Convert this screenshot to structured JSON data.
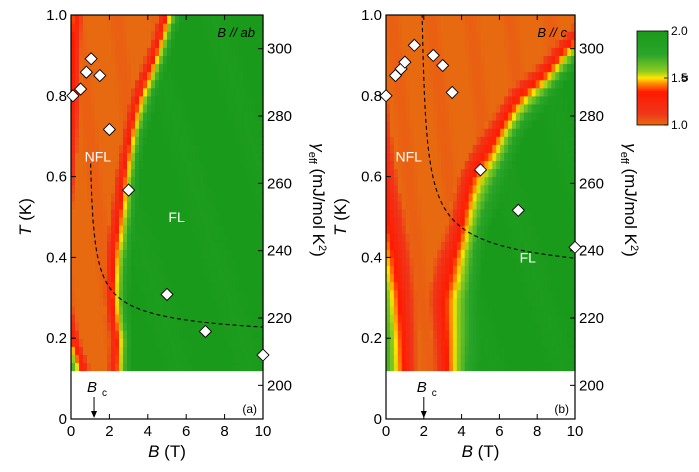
{
  "colors": {
    "low_alpha": "#ff1a00",
    "mid_alpha": "#ffe600",
    "high_alpha": "#1a9a1a",
    "marker_fill": "#ffffff",
    "marker_stroke": "#000000",
    "background": "#ffffff"
  },
  "colorbar": {
    "label": "α",
    "ticks": [
      {
        "value": 1.0,
        "label": "1.0"
      },
      {
        "value": 1.5,
        "label": "1.5"
      },
      {
        "value": 2.0,
        "label": "2.0"
      }
    ],
    "range": [
      1.0,
      2.0
    ]
  },
  "chart_data": [
    {
      "type": "heatmap",
      "panel_label": "(a)",
      "field_label": "B // ab",
      "xlabel": "B (T)",
      "ylabel": "T (K)",
      "y2label": "γ_eff (mJ/mol K²)",
      "xlim": [
        0,
        10
      ],
      "ylim": [
        0,
        1.0
      ],
      "y2lim": [
        190,
        310
      ],
      "heatmap_ymin": 0.12,
      "xticks": [
        {
          "value": 0,
          "label": "0"
        },
        {
          "value": 2,
          "label": "2"
        },
        {
          "value": 4,
          "label": "4"
        },
        {
          "value": 6,
          "label": "6"
        },
        {
          "value": 8,
          "label": "8"
        },
        {
          "value": 10,
          "label": "10"
        }
      ],
      "yticks": [
        {
          "value": 0,
          "label": "0"
        },
        {
          "value": 0.2,
          "label": "0.2"
        },
        {
          "value": 0.4,
          "label": "0.4"
        },
        {
          "value": 0.6,
          "label": "0.6"
        },
        {
          "value": 0.8,
          "label": "0.8"
        },
        {
          "value": 1.0,
          "label": "1.0"
        }
      ],
      "y2ticks": [
        {
          "value": 200,
          "label": "200"
        },
        {
          "value": 220,
          "label": "220"
        },
        {
          "value": 240,
          "label": "240"
        },
        {
          "value": 260,
          "label": "260"
        },
        {
          "value": 280,
          "label": "280"
        },
        {
          "value": 300,
          "label": "300"
        }
      ],
      "region_labels": [
        {
          "text": "NFL",
          "x": 1.4,
          "T": 0.65
        },
        {
          "text": "FL",
          "x": 5.5,
          "T": 0.5
        }
      ],
      "bc": {
        "label": "B",
        "sub": "c",
        "value": 1.2
      },
      "gamma_points": {
        "x": [
          0.1,
          0.5,
          0.8,
          1.05,
          1.5,
          2.0,
          3.0,
          5.0,
          7.0,
          10.0
        ],
        "gamma": [
          286,
          288,
          293,
          297,
          292,
          276,
          258,
          227,
          216,
          209
        ]
      },
      "fit_curve": {
        "Bc": 0.9,
        "a": 211,
        "b": 19,
        "p": 0.5,
        "x_start": 1.02,
        "x_end": 10.0
      },
      "map": {
        "nfl_left_edge": [
          [
            0.12,
            1.05
          ],
          [
            0.2,
            0.5
          ],
          [
            0.3,
            0.05
          ],
          [
            0.4,
            0.0
          ],
          [
            0.5,
            0.1
          ],
          [
            0.6,
            0.25
          ],
          [
            0.7,
            0.35
          ],
          [
            0.8,
            0.5
          ],
          [
            0.9,
            0.6
          ],
          [
            1.0,
            0.7
          ]
        ],
        "nfl_right_edge": [
          [
            0.12,
            1.8
          ],
          [
            0.2,
            1.9
          ],
          [
            0.3,
            1.7
          ],
          [
            0.4,
            1.8
          ],
          [
            0.5,
            2.0
          ],
          [
            0.6,
            2.2
          ],
          [
            0.7,
            2.6
          ],
          [
            0.8,
            3.1
          ],
          [
            0.9,
            3.8
          ],
          [
            1.0,
            4.5
          ]
        ],
        "crossover_width": 1.4
      }
    },
    {
      "type": "heatmap",
      "panel_label": "(b)",
      "field_label": "B // c",
      "xlabel": "B (T)",
      "ylabel": "T (K)",
      "y2label": "γ_eff (mJ/mol K²)",
      "xlim": [
        0,
        10
      ],
      "ylim": [
        0,
        1.0
      ],
      "y2lim": [
        190,
        310
      ],
      "heatmap_ymin": 0.12,
      "xticks": [
        {
          "value": 0,
          "label": "0"
        },
        {
          "value": 2,
          "label": "2"
        },
        {
          "value": 4,
          "label": "4"
        },
        {
          "value": 6,
          "label": "6"
        },
        {
          "value": 8,
          "label": "8"
        },
        {
          "value": 10,
          "label": "10"
        }
      ],
      "yticks": [
        {
          "value": 0,
          "label": "0"
        },
        {
          "value": 0.2,
          "label": "0.2"
        },
        {
          "value": 0.4,
          "label": "0.4"
        },
        {
          "value": 0.6,
          "label": "0.6"
        },
        {
          "value": 0.8,
          "label": "0.8"
        },
        {
          "value": 1.0,
          "label": "1.0"
        }
      ],
      "y2ticks": [
        {
          "value": 200,
          "label": "200"
        },
        {
          "value": 220,
          "label": "220"
        },
        {
          "value": 240,
          "label": "240"
        },
        {
          "value": 260,
          "label": "260"
        },
        {
          "value": 280,
          "label": "280"
        },
        {
          "value": 300,
          "label": "300"
        }
      ],
      "region_labels": [
        {
          "text": "NFL",
          "x": 1.2,
          "T": 0.65
        },
        {
          "text": "FL",
          "x": 7.5,
          "T": 0.4
        }
      ],
      "bc": {
        "label": "B",
        "sub": "c",
        "value": 2.0
      },
      "gamma_points": {
        "x": [
          0.0,
          0.5,
          0.8,
          1.0,
          1.5,
          2.5,
          3.0,
          3.5,
          5.0,
          7.0,
          10.0
        ],
        "gamma": [
          286,
          292,
          294,
          296,
          301,
          298,
          295,
          287,
          264,
          252,
          241
        ]
      },
      "fit_curve": {
        "Bc": 1.8,
        "a": 228,
        "b": 28,
        "p": 0.5,
        "x_start": 1.85,
        "x_end": 10.0
      },
      "map": {
        "nfl_left_edge": [
          [
            0.12,
            1.8
          ],
          [
            0.2,
            1.8
          ],
          [
            0.3,
            1.7
          ],
          [
            0.4,
            1.4
          ],
          [
            0.5,
            1.0
          ],
          [
            0.6,
            0.6
          ],
          [
            0.7,
            0.3
          ],
          [
            0.8,
            0.1
          ],
          [
            0.9,
            0.0
          ],
          [
            1.0,
            0.0
          ]
        ],
        "nfl_right_edge": [
          [
            0.12,
            2.4
          ],
          [
            0.2,
            2.4
          ],
          [
            0.3,
            2.3
          ],
          [
            0.4,
            2.6
          ],
          [
            0.5,
            3.2
          ],
          [
            0.6,
            3.8
          ],
          [
            0.7,
            4.8
          ],
          [
            0.8,
            6.3
          ],
          [
            0.9,
            8.3
          ],
          [
            1.0,
            10.5
          ]
        ],
        "crossover_width": 2.6
      }
    }
  ]
}
